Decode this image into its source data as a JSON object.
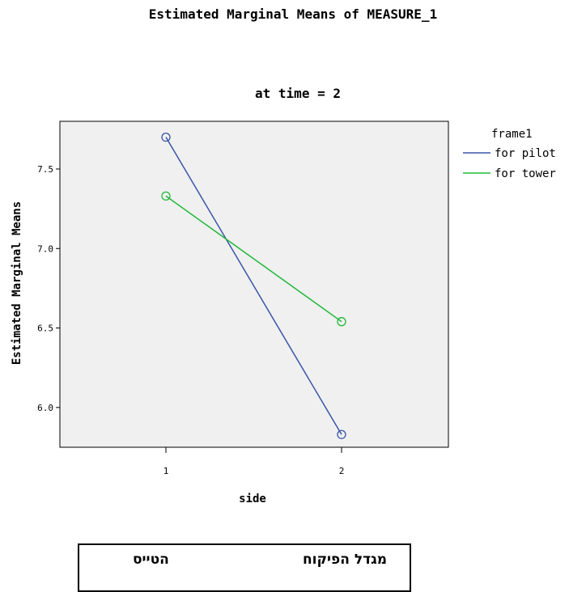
{
  "main_title": "Estimated Marginal Means of MEASURE_1",
  "chart_data": {
    "type": "line",
    "title": "at time = 2",
    "xlabel": "side",
    "ylabel": "Estimated Marginal Means",
    "categories": [
      "1",
      "2"
    ],
    "y_ticks": [
      "6.0",
      "6.5",
      "7.0",
      "7.5"
    ],
    "ylim": [
      5.75,
      7.8
    ],
    "legend_title": "frame1",
    "legend_position": "right",
    "plot_background": "#f0f0f0",
    "grid": false,
    "series": [
      {
        "name": "for pilot",
        "color": "#3a55a8",
        "values": [
          7.7,
          5.83
        ]
      },
      {
        "name": "for tower",
        "color": "#22b83a",
        "values": [
          7.33,
          6.54
        ]
      }
    ]
  },
  "bottom_labels": {
    "left": "הטייס",
    "right": "מגדל הפיקוח"
  }
}
